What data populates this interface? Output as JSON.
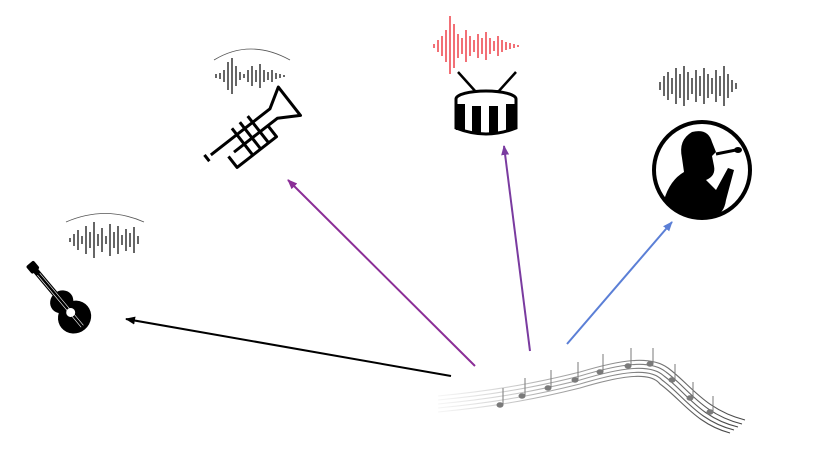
{
  "diagram": {
    "source": {
      "icon": "music-staff-icon"
    },
    "targets": [
      {
        "id": "guitar",
        "icon": "guitar-icon",
        "waveform_icon": "waveform-icon",
        "arrow_color": "#000000",
        "waveform_color": "#000000"
      },
      {
        "id": "trumpet",
        "icon": "trumpet-icon",
        "waveform_icon": "waveform-icon",
        "arrow_color": "#8B2E97",
        "waveform_color": "#000000"
      },
      {
        "id": "drum",
        "icon": "drum-icon",
        "waveform_icon": "waveform-icon",
        "arrow_color": "#7A3BA0",
        "waveform_color": "#E8111B"
      },
      {
        "id": "singer",
        "icon": "singer-icon",
        "waveform_icon": "waveform-icon",
        "arrow_color": "#5B7FD6",
        "waveform_color": "#000000"
      }
    ]
  }
}
